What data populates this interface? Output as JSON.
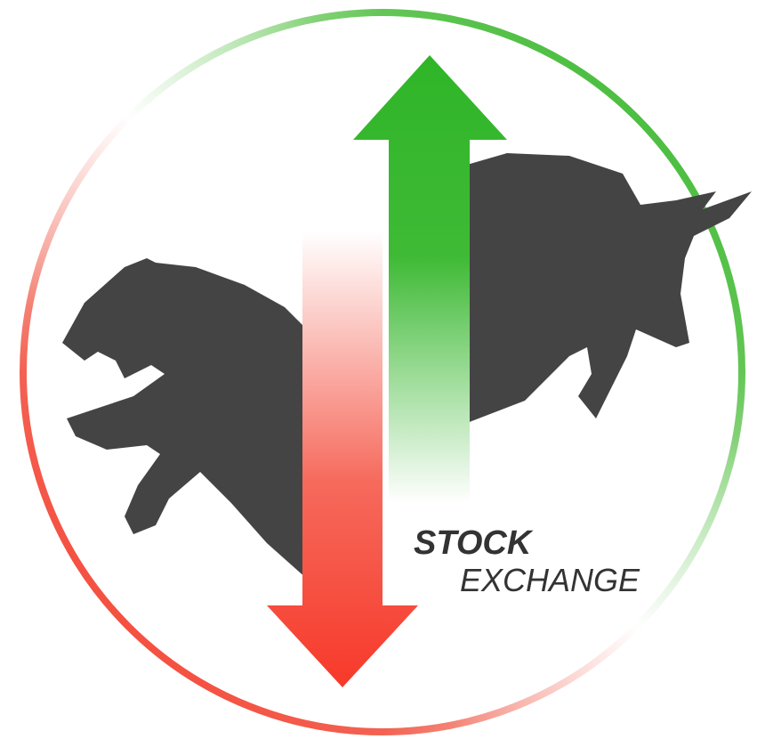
{
  "logo": {
    "line1": "STOCK",
    "line2": "EXCHANGE"
  }
}
